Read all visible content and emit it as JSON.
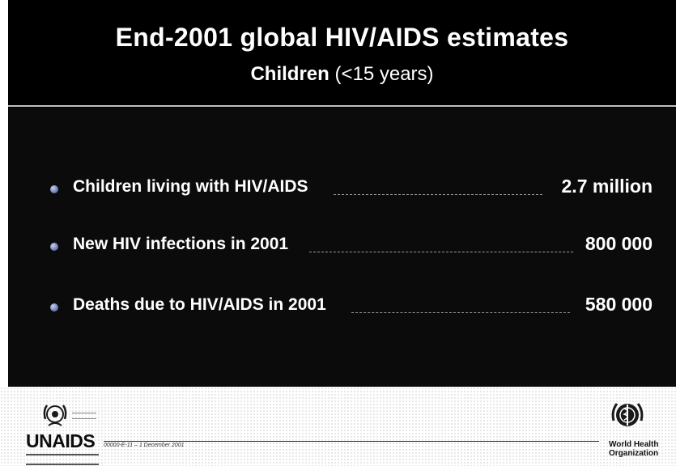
{
  "slide": {
    "title": "End-2001 global HIV/AIDS estimates",
    "subtitle_main": "Children",
    "subtitle_note": "(<15 years)"
  },
  "items": [
    {
      "label": "Children living with HIV/AIDS",
      "value": "2.7 million"
    },
    {
      "label": "New HIV infections in 2001",
      "value": "800 000"
    },
    {
      "label": "Deaths due to HIV/AIDS in 2001",
      "value": "580 000"
    }
  ],
  "footer": {
    "unaids_logo_text": "UNAIDS",
    "reference": "00000-E-11 – 1 December 2001",
    "who_name_line1": "World Health",
    "who_name_line2": "Organization"
  },
  "colors": {
    "slide_background": "#0b0b0b",
    "header_background": "#000000",
    "text": "#ffffff",
    "bullet": "#6f7fb8",
    "footer_background": "#ffffff"
  },
  "icons": [
    "un-emblem-icon",
    "who-emblem-icon",
    "bullet-icon"
  ]
}
